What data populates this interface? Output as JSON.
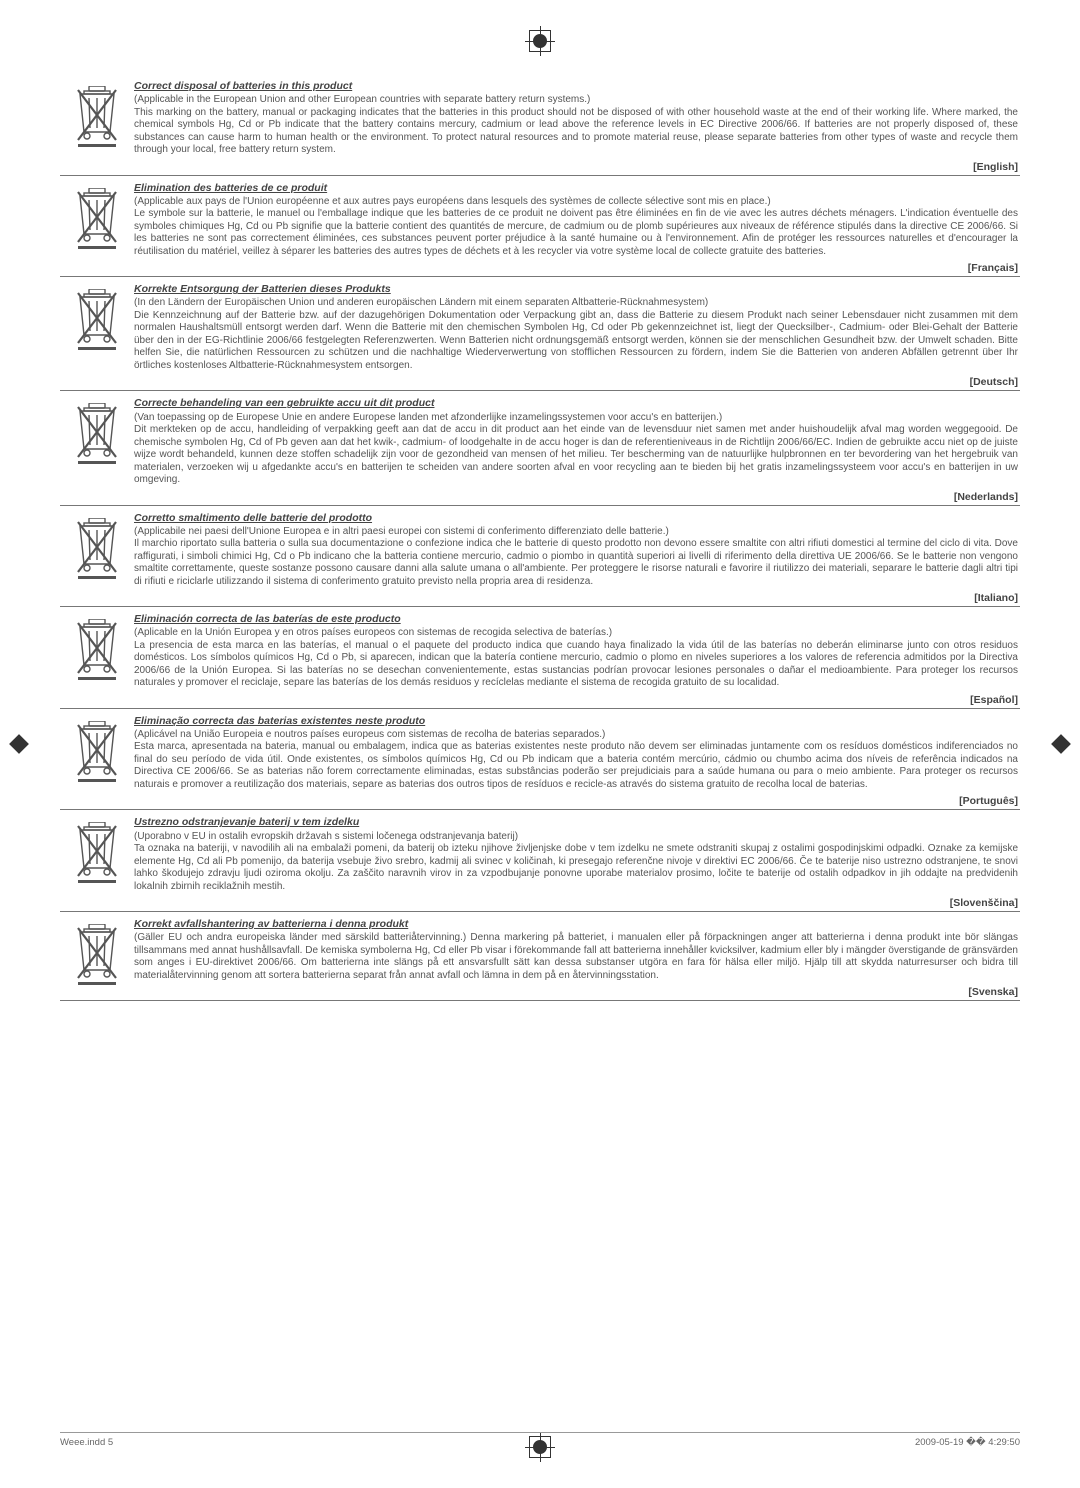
{
  "sections": [
    {
      "title": "Correct disposal of batteries in this product",
      "body": "(Applicable in the European Union and other European countries with separate battery return systems.)\nThis marking on the battery, manual or packaging indicates that the batteries in this product should not be disposed of with other household waste at the end of their working life. Where marked, the chemical symbols Hg, Cd or Pb indicate that the battery contains mercury, cadmium or lead above the reference levels in EC Directive 2006/66. If batteries are not properly disposed of, these substances can cause harm to human health or the environment. To protect natural resources and to promote material reuse, please separate batteries from other types of waste and recycle them through your local, free battery return system.",
      "lang": "English"
    },
    {
      "title": "Elimination des batteries de ce produit",
      "body": "(Applicable aux pays de l'Union européenne et aux autres pays européens dans lesquels des systèmes de collecte sélective sont mis en place.)\nLe symbole sur la batterie, le manuel ou l'emballage indique que les batteries de ce produit ne doivent pas être éliminées en fin de vie avec les autres déchets ménagers. L'indication éventuelle des symboles chimiques Hg, Cd ou Pb signifie que la batterie contient des quantités de mercure, de cadmium ou de plomb supérieures aux niveaux de référence stipulés dans la directive CE 2006/66. Si les batteries ne sont pas correctement éliminées, ces substances peuvent porter préjudice à la santé humaine ou à l'environnement. Afin de protéger les ressources naturelles et d'encourager la réutilisation du matériel, veillez à séparer les batteries des autres types de déchets et à les recycler via votre système local de collecte gratuite des batteries.",
      "lang": "Français"
    },
    {
      "title": "Korrekte Entsorgung der Batterien dieses Produkts",
      "body": "(In den Ländern der Europäischen Union und anderen europäischen Ländern mit einem separaten Altbatterie-Rücknahmesystem)\nDie Kennzeichnung auf der Batterie bzw. auf der dazugehörigen Dokumentation oder Verpackung gibt an, dass die Batterie zu diesem Produkt nach seiner Lebensdauer nicht zusammen mit dem normalen Haushaltsmüll entsorgt werden darf. Wenn die Batterie mit den chemischen Symbolen Hg, Cd oder Pb gekennzeichnet ist, liegt der Quecksilber-, Cadmium- oder Blei-Gehalt der Batterie über den in der EG-Richtlinie 2006/66 festgelegten Referenzwerten. Wenn Batterien nicht ordnungsgemäß entsorgt werden, können sie der menschlichen Gesundheit bzw. der Umwelt schaden. Bitte helfen Sie, die natürlichen Ressourcen zu schützen und die nachhaltige Wiederverwertung von stofflichen Ressourcen zu fördern, indem Sie die Batterien von anderen Abfällen getrennt über Ihr örtliches kostenloses Altbatterie-Rücknahmesystem entsorgen.",
      "lang": "Deutsch"
    },
    {
      "title": "Correcte behandeling van een gebruikte accu uit dit product",
      "body": "(Van toepassing op de Europese Unie en andere Europese landen met afzonderlijke inzamelingssystemen voor accu's en batterijen.)\nDit merkteken op de accu, handleiding of verpakking geeft aan dat de accu in dit product aan het einde van de levensduur niet samen met ander huishoudelijk afval mag worden weggegooid. De chemische symbolen Hg, Cd of Pb geven aan dat het kwik-, cadmium- of loodgehalte in de accu hoger is dan de referentieniveaus in de Richtlijn 2006/66/EC. Indien de gebruikte accu niet op de juiste wijze wordt behandeld, kunnen deze stoffen schadelijk zijn voor de gezondheid van mensen of het milieu. Ter bescherming van de natuurlijke hulpbronnen en ter bevordering van het hergebruik van materialen, verzoeken wij u afgedankte accu's en batterijen te scheiden van andere soorten afval en voor recycling aan te bieden bij het gratis inzamelingssysteem voor accu's en batterijen in uw omgeving.",
      "lang": "Nederlands"
    },
    {
      "title": "Corretto smaltimento delle batterie del prodotto",
      "body": "(Applicabile nei paesi dell'Unione Europea e in altri paesi europei con sistemi di conferimento differenziato delle batterie.)\nIl marchio riportato sulla batteria o sulla sua documentazione o confezione indica che le batterie di questo prodotto non devono essere smaltite con altri rifiuti domestici al termine del ciclo di vita. Dove raffigurati, i simboli chimici Hg, Cd o Pb indicano che la batteria contiene mercurio, cadmio o piombo in quantità superiori ai livelli di riferimento della direttiva UE 2006/66. Se le batterie non vengono smaltite correttamente, queste sostanze possono causare danni alla salute umana o all'ambiente. Per proteggere le risorse naturali e favorire il riutilizzo dei materiali, separare le batterie dagli altri tipi di rifiuti e riciclarle utilizzando il sistema di conferimento gratuito previsto nella propria area di residenza.",
      "lang": "Italiano"
    },
    {
      "title": "Eliminación correcta de las baterías de este producto",
      "body": "(Aplicable en la Unión Europea y en otros países europeos con sistemas de recogida selectiva de baterías.)\nLa presencia de esta marca en las baterías, el manual o el paquete del producto indica que cuando haya finalizado la vida útil de las baterías no deberán eliminarse junto con otros residuos domésticos. Los símbolos químicos Hg, Cd o Pb, si aparecen, indican que la batería contiene mercurio, cadmio o plomo en niveles superiores a los valores de referencia admitidos por la Directiva 2006/66 de la Unión Europea. Si las baterías no se desechan convenientemente, estas sustancias podrían provocar lesiones personales o dañar el medioambiente. Para proteger los recursos naturales y promover el reciclaje, separe las baterías de los demás residuos y recíclelas mediante el sistema de recogida gratuito de su localidad.",
      "lang": "Español"
    },
    {
      "title": "Eliminação correcta das baterias existentes neste produto",
      "body": "(Aplicável na União Europeia e noutros países europeus com sistemas de recolha de baterias separados.)\nEsta marca, apresentada na bateria, manual ou embalagem, indica que as baterias existentes neste produto não devem ser eliminadas juntamente com os resíduos domésticos indiferenciados no final do seu período de vida útil. Onde existentes, os símbolos químicos Hg, Cd ou Pb indicam que a bateria contém mercúrio, cádmio ou chumbo acima dos níveis de referência indicados na Directiva CE 2006/66. Se as baterias não forem correctamente eliminadas, estas substâncias poderão ser prejudiciais para a saúde humana ou para o meio ambiente. Para proteger os recursos naturais e promover a reutilização dos materiais, separe as baterias dos outros tipos de resíduos e recicle-as através do sistema gratuito de recolha local de baterias.",
      "lang": "Português"
    },
    {
      "title": "Ustrezno odstranjevanje baterij v tem izdelku",
      "body": "(Uporabno v EU in ostalih evropskih državah s sistemi ločenega odstranjevanja baterij)\nTa oznaka na bateriji, v navodilih ali na embalaži pomeni, da baterij ob izteku njihove življenjske dobe v tem izdelku ne smete odstraniti skupaj z ostalimi gospodinjskimi odpadki. Oznake za kemijske elemente Hg, Cd ali Pb pomenijo, da baterija vsebuje živo srebro, kadmij ali svinec v količinah, ki presegajo referenčne nivoje v direktivi EC 2006/66. Če te baterije niso ustrezno odstranjene, te snovi lahko škodujejo zdravju ljudi oziroma okolju. Za zaščito naravnih virov in za vzpodbujanje ponovne uporabe materialov prosimo, ločite te baterije od ostalih odpadkov in jih oddajte na predvidenih lokalnih zbirnih reciklažnih mestih.",
      "lang": "Slovenščina"
    },
    {
      "title": "Korrekt avfallshantering av batterierna i denna produkt",
      "body": "(Gäller EU och andra europeiska länder med särskild batteriåtervinning.) Denna markering på batteriet, i manualen eller på förpackningen anger att batterierna i denna produkt inte bör slängas tillsammans med annat hushållsavfall. De kemiska symbolerna Hg, Cd eller Pb visar i förekommande fall att batterierna innehåller kvicksilver, kadmium eller bly i mängder överstigande de gränsvärden som anges i EU-direktivet 2006/66. Om batterierna inte slängs på ett ansvarsfullt sätt kan dessa substanser utgöra en fara för hälsa eller miljö. Hjälp till att skydda naturresurser och bidra till materialåtervinning genom att sortera batterierna separat från annat avfall och lämna in dem på en återvinningsstation.",
      "lang": "Svenska"
    }
  ],
  "footer_left": "Weee.indd   5",
  "footer_right": "2009-05-19   �� 4:29:50",
  "icon_svg": "<svg width='46' height='62' viewBox='0 0 46 62'><g fill='none' stroke='#555' stroke-width='1.4'><rect x='15' y='0' width='16' height='5' rx='1'/><rect x='10' y='5' width='26' height='3'/><path d='M6 8 L40 8 L36 46 L10 46 Z'/><line x1='15' y1='12' x2='16' y2='42'/><line x1='23' y1='12' x2='23' y2='42'/><line x1='31' y1='12' x2='30' y2='42'/><circle cx='13' cy='50' r='3'/><circle cx='33' cy='50' r='3'/><line x1='4' y1='4' x2='42' y2='54' stroke-width='2.2'/><line x1='42' y1='4' x2='4' y2='54' stroke-width='2.2'/><rect x='4' y='58' width='38' height='3' fill='#555' stroke='none'/></g></svg>"
}
